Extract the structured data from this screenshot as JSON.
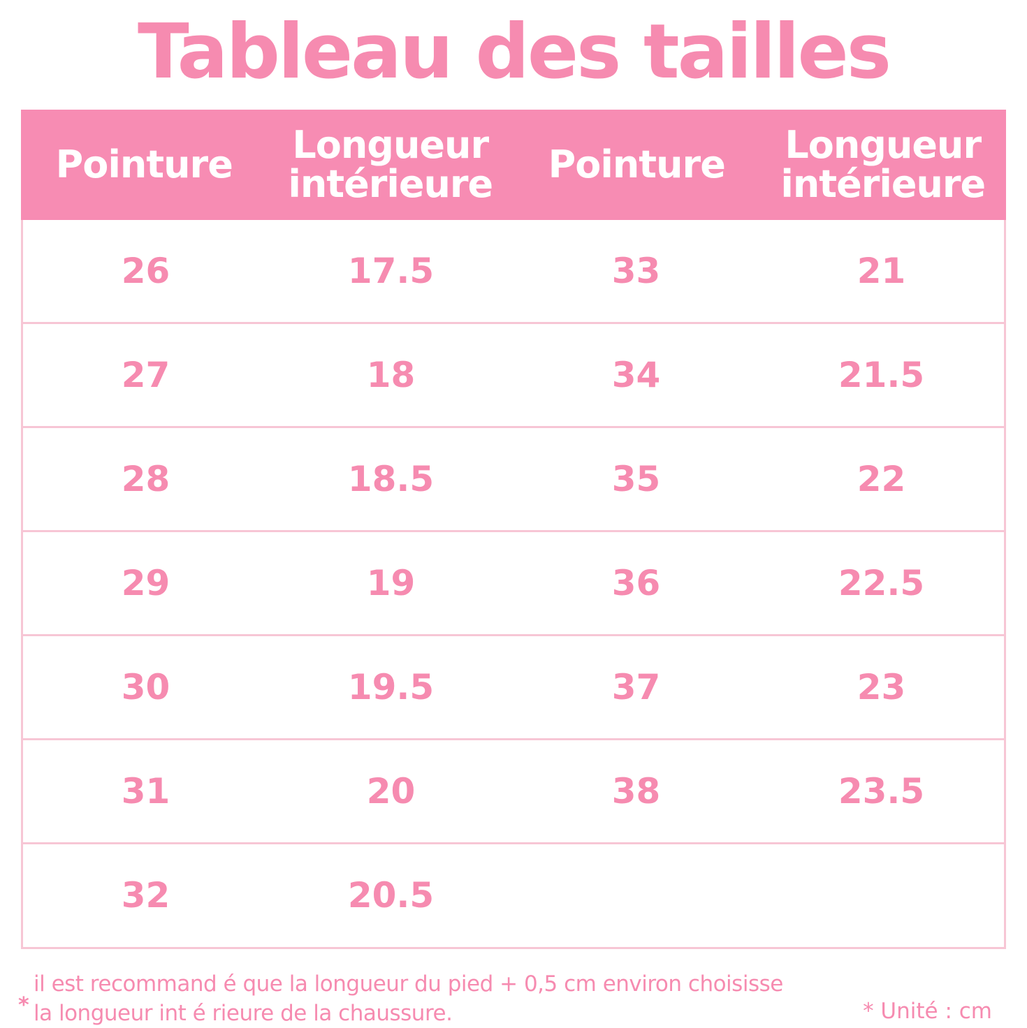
{
  "title": "Tableau des tailles",
  "table": {
    "headers": [
      "Pointure",
      "Longueur\nintérieure",
      "Pointure",
      "Longueur\nintérieure"
    ],
    "rows": [
      [
        "26",
        "17.5",
        "33",
        "21"
      ],
      [
        "27",
        "18",
        "34",
        "21.5"
      ],
      [
        "28",
        "18.5",
        "35",
        "22"
      ],
      [
        "29",
        "19",
        "36",
        "22.5"
      ],
      [
        "30",
        "19.5",
        "37",
        "23"
      ],
      [
        "31",
        "20",
        "38",
        "23.5"
      ],
      [
        "32",
        "20.5",
        "",
        ""
      ]
    ]
  },
  "footnote": {
    "star": "*",
    "text": "il est recommand é  que la longueur du pied + 0,5 cm environ choisisse\nla longueur int é rieure de la chaussure.",
    "unit": "* Unité  : cm"
  },
  "colors": {
    "accent": "#f78cb3",
    "text": "#f68bb0",
    "border": "#f7c6d5"
  }
}
